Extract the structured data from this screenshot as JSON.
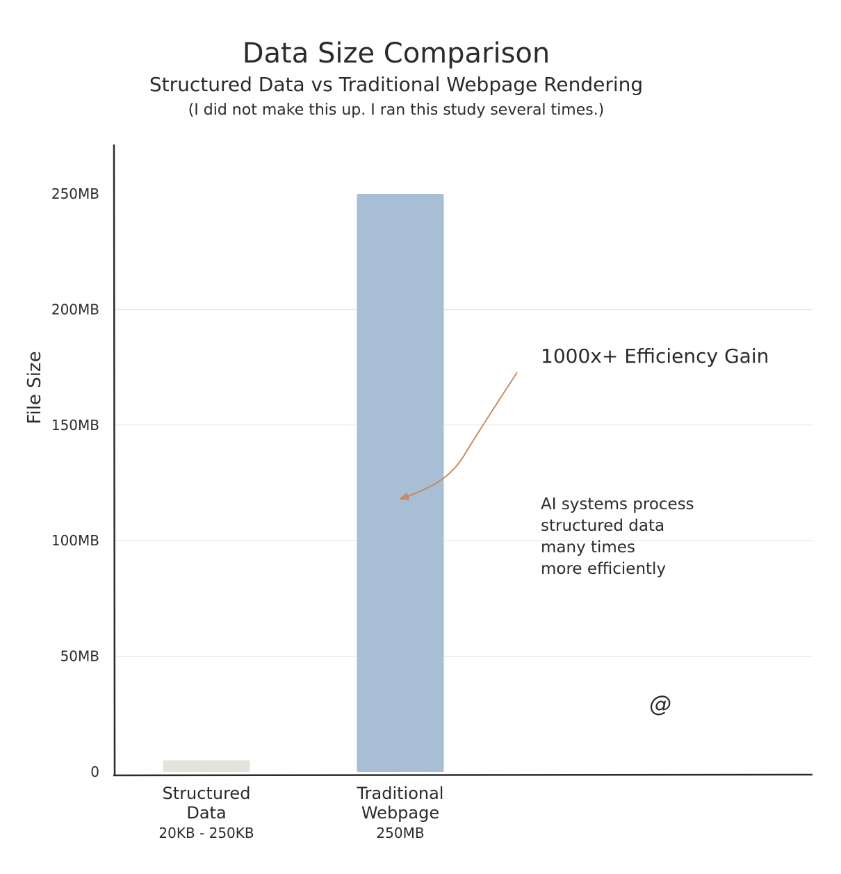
{
  "chart_data": {
    "type": "bar",
    "title": "Data Size Comparison",
    "subtitle": "Structured Data vs Traditional Webpage Rendering",
    "note": "(I did not make this up. I ran this study several times.)",
    "ylabel": "File Size",
    "xlabel": "",
    "ylim": [
      0,
      270
    ],
    "y_unit": "MB",
    "y_ticks": [
      {
        "value": 0,
        "label": "0"
      },
      {
        "value": 50,
        "label": "50MB"
      },
      {
        "value": 100,
        "label": "100MB"
      },
      {
        "value": 150,
        "label": "150MB"
      },
      {
        "value": 200,
        "label": "200MB"
      },
      {
        "value": 250,
        "label": "250MB"
      }
    ],
    "gridlines_at": [
      50,
      100,
      150,
      200
    ],
    "bars": [
      {
        "category_lines": [
          "Structured",
          "Data"
        ],
        "sublabel": "20KB - 250KB",
        "value": 5,
        "color": "#e3e3dc"
      },
      {
        "category_lines": [
          "Traditional",
          "Webpage"
        ],
        "sublabel": "250MB",
        "value": 250,
        "color": "#a7bed5"
      }
    ],
    "callout": {
      "text": "1000x+ Efficiency Gain",
      "arrow_color": "#cc8a62"
    },
    "annotation_lines": [
      "AI systems process",
      "structured data",
      "many times",
      "more efficiently"
    ],
    "signature": "@"
  }
}
